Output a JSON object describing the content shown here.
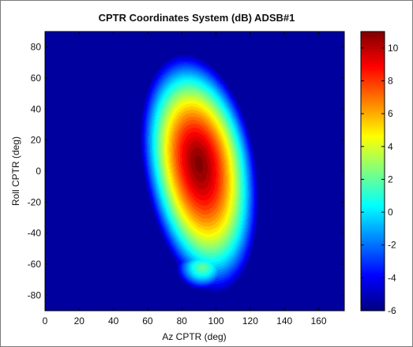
{
  "chart_data": {
    "type": "heatmap",
    "title": "CPTR Coordinates System (dB)  ADSB#1",
    "xlabel": "Az CPTR (deg)",
    "ylabel": "Roll CPTR (deg)",
    "xlim": [
      0,
      175
    ],
    "ylim": [
      -90,
      90
    ],
    "x_ticks": [
      0,
      20,
      40,
      60,
      80,
      100,
      120,
      140,
      160
    ],
    "y_ticks": [
      80,
      60,
      40,
      20,
      0,
      -20,
      -40,
      -60,
      -80
    ],
    "colorbar": {
      "range": [
        -6,
        11
      ],
      "ticks": [
        10,
        8,
        6,
        4,
        2,
        0,
        -2,
        -4,
        -6
      ],
      "colormap": "jet"
    },
    "background_level_db": -5.5,
    "pattern": [
      {
        "name": "main-lobe",
        "center": [
          90,
          5
        ],
        "peak_db": 11,
        "az_halfwidth_deg": 34,
        "roll_halfwidth_up_deg": 72,
        "roll_halfwidth_down_deg": 85,
        "az_tilt_per_deg_roll": -0.12
      },
      {
        "name": "lower-lobe",
        "center": [
          92,
          -62
        ],
        "peak_db": 2,
        "az_halfwidth_deg": 16,
        "roll_halfwidth_up_deg": 12,
        "roll_halfwidth_down_deg": 15,
        "az_tilt_per_deg_roll": 0
      }
    ]
  }
}
